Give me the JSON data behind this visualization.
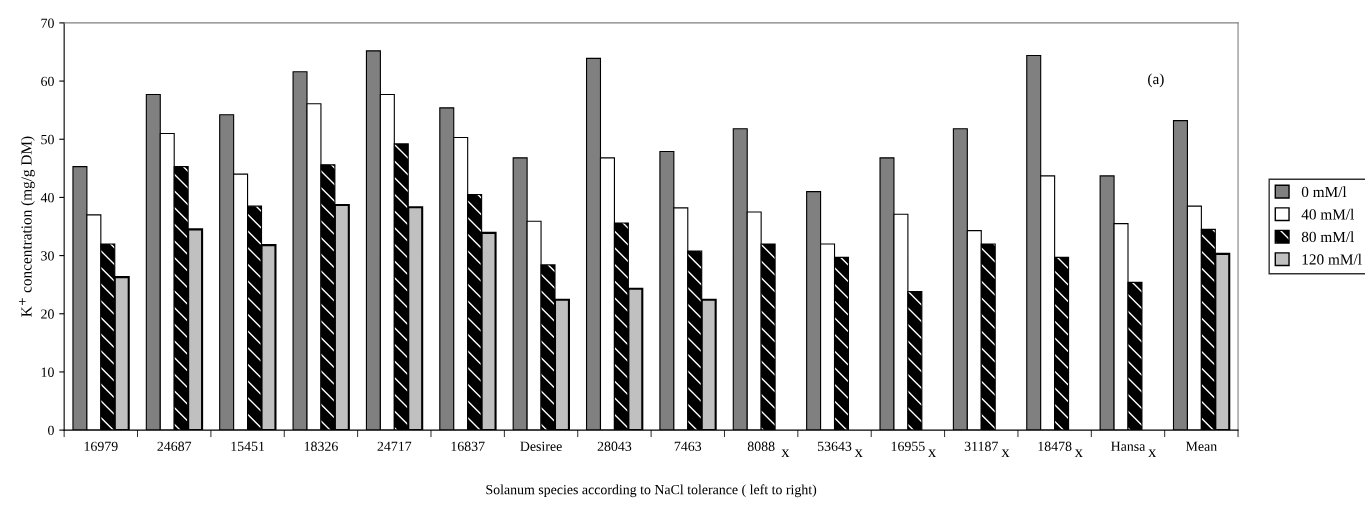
{
  "chart_data": {
    "type": "bar",
    "ylabel": "K$^{+}$ concentration (mg/g DM)",
    "xlabel": "Solanum species according to NaCl tolerance ( left to right)",
    "categories": [
      "16979",
      "24687",
      "15451",
      "18326",
      "24717",
      "16837",
      "Desiree",
      "28043",
      "7463",
      "8088",
      "53643",
      "16955",
      "31187",
      "18478",
      "Hansa",
      "Mean"
    ],
    "series": [
      {
        "name": "0 mM/l",
        "color": "#808080",
        "values": [
          45.3,
          57.7,
          54.2,
          61.6,
          65.2,
          55.4,
          46.8,
          63.9,
          47.9,
          51.8,
          41.0,
          46.8,
          51.8,
          64.4,
          43.7,
          53.2
        ]
      },
      {
        "name": "40 mM/l",
        "color": "#ffffff",
        "values": [
          37.0,
          51.0,
          44.0,
          56.1,
          57.7,
          50.3,
          35.9,
          46.8,
          38.2,
          37.5,
          32.0,
          37.1,
          34.3,
          43.7,
          35.5,
          38.5
        ]
      },
      {
        "name": "80 mM/l",
        "color": "#000000",
        "values": [
          32.0,
          45.3,
          38.5,
          45.6,
          49.2,
          40.5,
          28.4,
          35.6,
          30.8,
          32.0,
          29.7,
          23.8,
          32.0,
          29.7,
          25.4,
          34.5
        ]
      },
      {
        "name": "120 mM/l",
        "color": "#c0c0c0",
        "values": [
          26.3,
          34.5,
          31.8,
          38.7,
          38.3,
          33.9,
          22.4,
          24.3,
          22.4,
          null,
          null,
          null,
          null,
          null,
          null,
          30.3
        ]
      }
    ],
    "ylim": [
      0,
      70
    ],
    "yticks": [
      0,
      10,
      20,
      30,
      40,
      50,
      60,
      70
    ],
    "grid": false,
    "legend": "right",
    "annotations": [
      "(a)",
      "x",
      "x",
      "x",
      "x",
      "x",
      "x"
    ]
  }
}
